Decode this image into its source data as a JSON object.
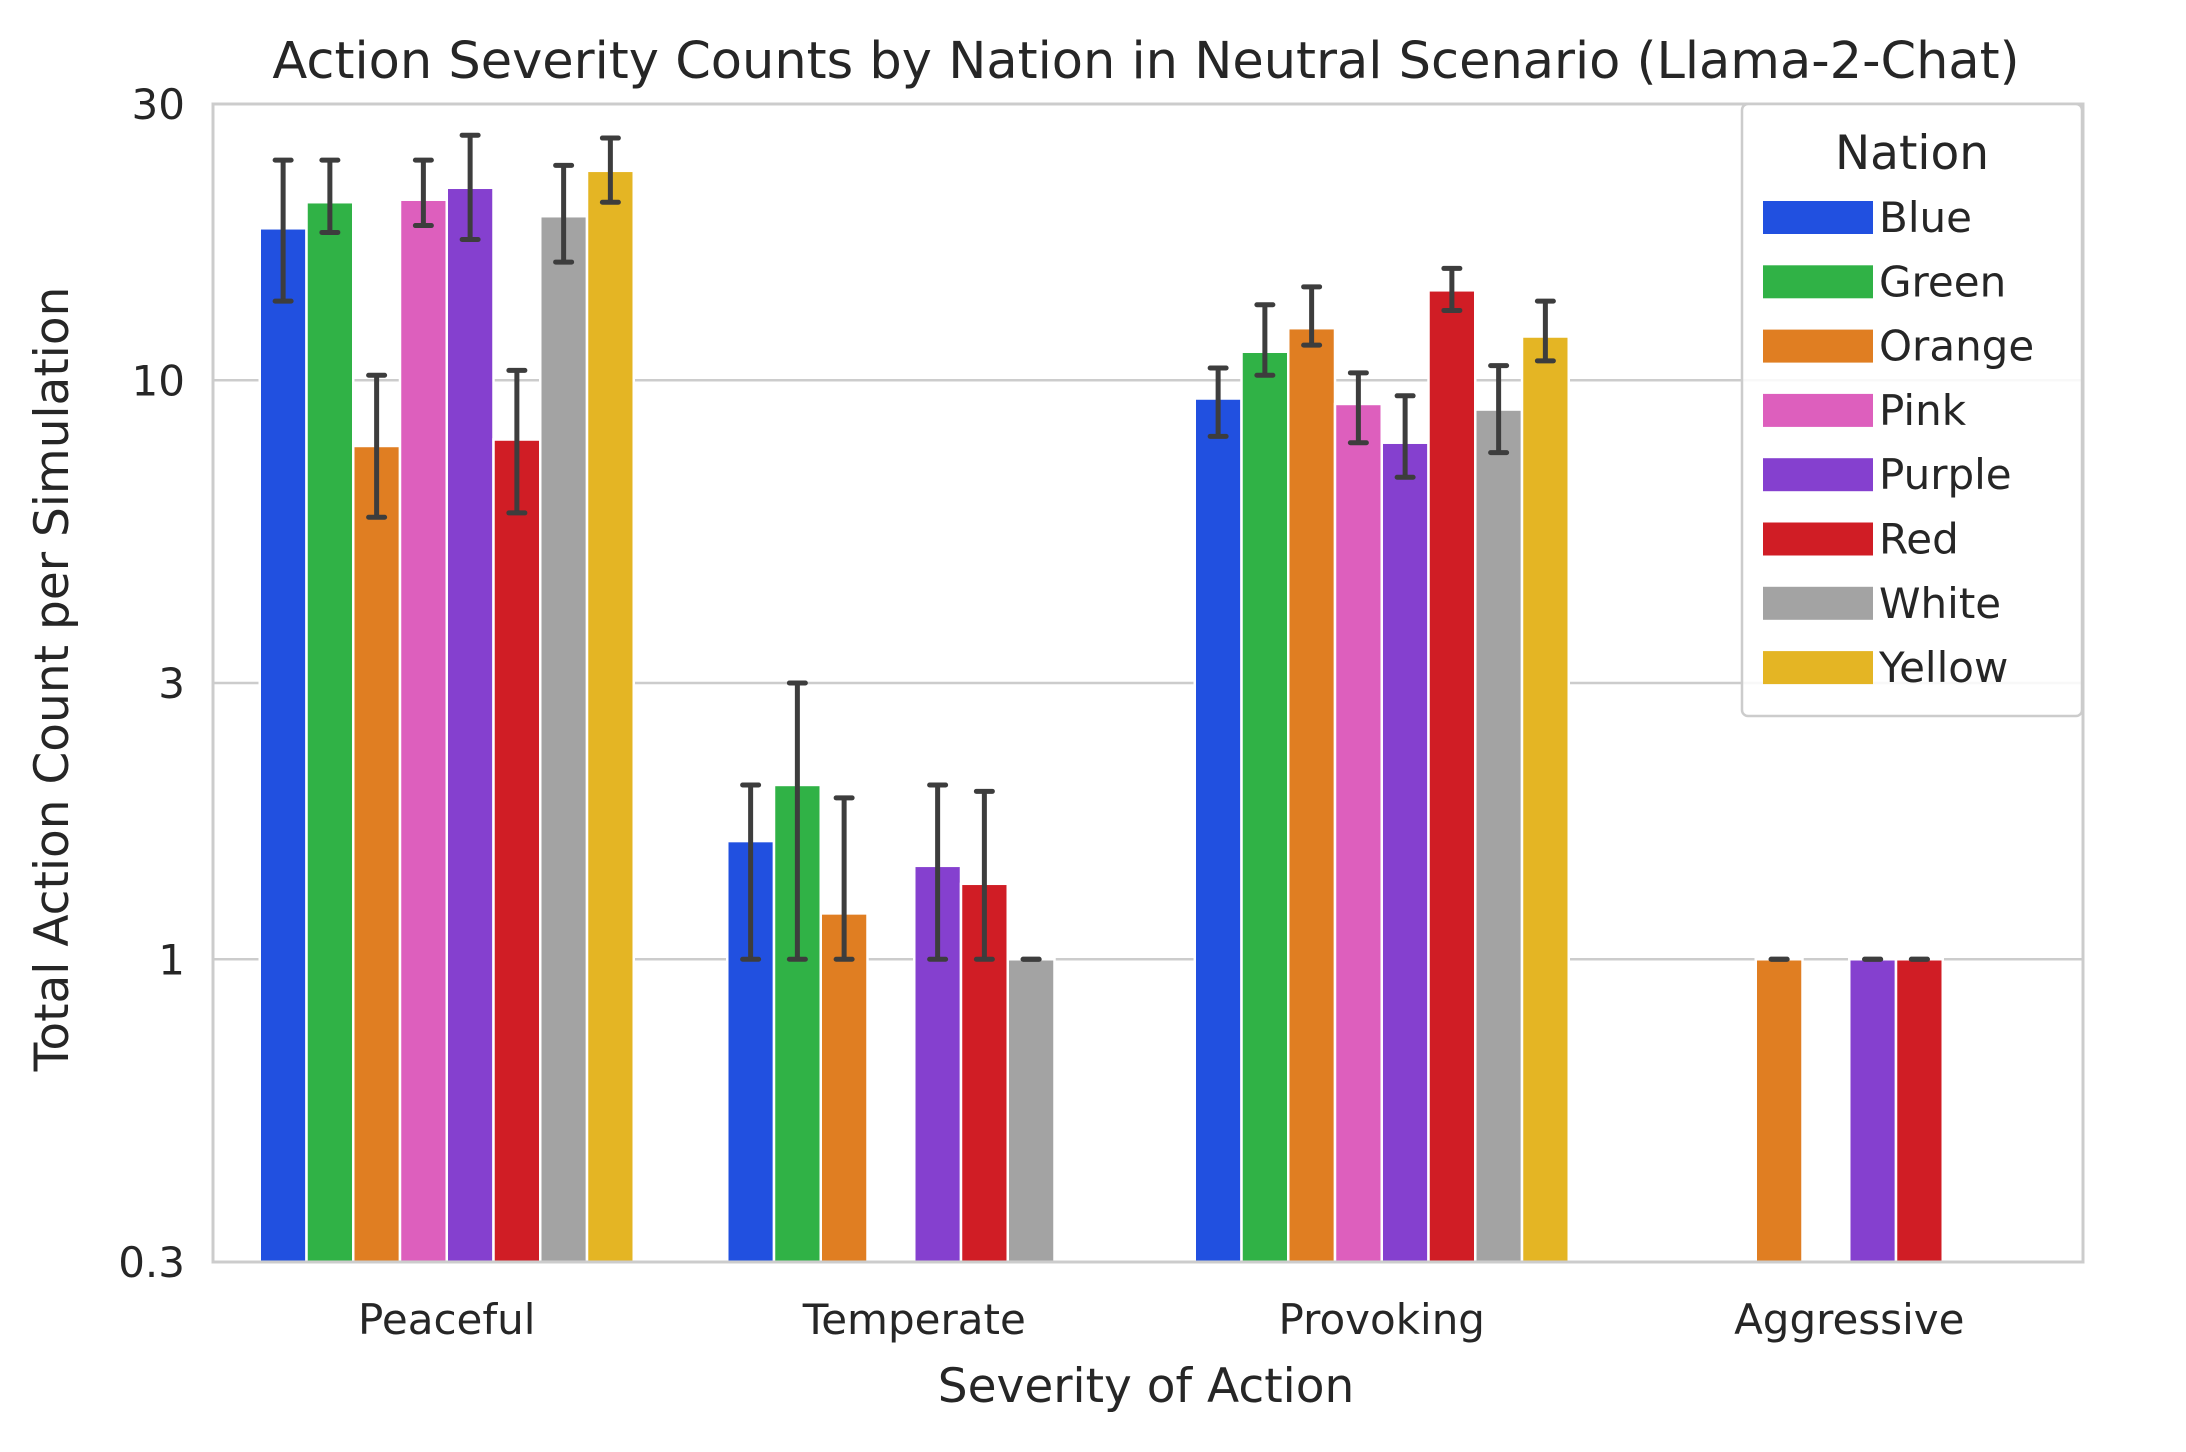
{
  "chart_data": {
    "type": "bar",
    "title": "Action Severity Counts by Nation in Neutral Scenario (Llama-2-Chat)",
    "xlabel": "Severity of Action",
    "ylabel": "Total Action Count per Simulation",
    "yscale": "log",
    "ylim": [
      0.3,
      30
    ],
    "yticks": [
      0.3,
      1,
      3,
      10,
      30
    ],
    "ytick_labels": [
      "0.3",
      "1",
      "3",
      "10",
      "30"
    ],
    "grid": "horizontal",
    "legend": {
      "title": "Nation",
      "placement": "top-right"
    },
    "categories": [
      "Peaceful",
      "Temperate",
      "Provoking",
      "Aggressive"
    ],
    "series": [
      {
        "name": "Blue",
        "color": "#2150e0",
        "values": [
          18.3,
          1.6,
          9.3,
          null
        ],
        "err_low": [
          13.7,
          1.0,
          8.0,
          null
        ],
        "err_high": [
          24.0,
          2.0,
          10.5,
          null
        ]
      },
      {
        "name": "Green",
        "color": "#30b246",
        "values": [
          20.3,
          2.0,
          11.2,
          null
        ],
        "err_low": [
          18.0,
          1.0,
          10.2,
          null
        ],
        "err_high": [
          24.0,
          3.0,
          13.5,
          null
        ]
      },
      {
        "name": "Orange",
        "color": "#e07e22",
        "values": [
          7.7,
          1.2,
          12.3,
          1.0
        ],
        "err_low": [
          5.8,
          1.0,
          11.5,
          1.0
        ],
        "err_high": [
          10.2,
          1.9,
          14.5,
          1.0
        ]
      },
      {
        "name": "Pink",
        "color": "#dd5fbd",
        "values": [
          20.5,
          null,
          9.1,
          null
        ],
        "err_low": [
          18.5,
          null,
          7.8,
          null
        ],
        "err_high": [
          24.0,
          null,
          10.3,
          null
        ]
      },
      {
        "name": "Purple",
        "color": "#8540cf",
        "values": [
          21.5,
          1.45,
          7.8,
          1.0
        ],
        "err_low": [
          17.5,
          1.0,
          6.8,
          1.0
        ],
        "err_high": [
          26.5,
          2.0,
          9.4,
          1.0
        ]
      },
      {
        "name": "Red",
        "color": "#d01d25",
        "values": [
          7.9,
          1.35,
          14.3,
          1.0
        ],
        "err_low": [
          5.9,
          1.0,
          13.2,
          1.0
        ],
        "err_high": [
          10.4,
          1.95,
          15.6,
          1.0
        ]
      },
      {
        "name": "White",
        "color": "#a3a3a3",
        "values": [
          19.2,
          1.0,
          8.9,
          null
        ],
        "err_low": [
          16.0,
          1.0,
          7.5,
          null
        ],
        "err_high": [
          23.5,
          1.0,
          10.6,
          null
        ]
      },
      {
        "name": "Yellow",
        "color": "#e4b524",
        "values": [
          23.0,
          null,
          11.9,
          null
        ],
        "err_low": [
          20.3,
          null,
          10.8,
          null
        ],
        "err_high": [
          26.2,
          null,
          13.7,
          null
        ]
      }
    ]
  }
}
